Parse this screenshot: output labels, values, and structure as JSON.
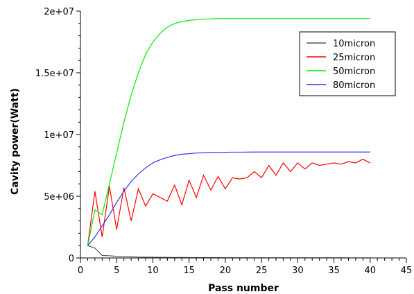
{
  "chart_data": {
    "type": "line",
    "title": "",
    "xlabel": "Pass number",
    "ylabel": "Cavity power(Watt)",
    "xlim": [
      0,
      45
    ],
    "ylim": [
      0,
      20000000
    ],
    "x_ticks": [
      0,
      5,
      10,
      15,
      20,
      25,
      30,
      35,
      40,
      45
    ],
    "x_tick_labels": [
      "0",
      "5",
      "10",
      "15",
      "20",
      "25",
      "30",
      "35",
      "40",
      "45"
    ],
    "y_ticks": [
      0,
      5000000,
      10000000,
      15000000,
      20000000
    ],
    "y_tick_labels": [
      "0",
      "5e+06",
      "1e+07",
      "1.5e+07",
      "2e+07"
    ],
    "grid": false,
    "legend_position": "top-right",
    "series": [
      {
        "name": "10micron",
        "color": "#555555",
        "x": [
          1,
          2,
          3,
          4,
          5,
          6,
          7,
          8,
          9,
          10,
          11,
          12,
          13,
          14,
          15,
          16,
          17,
          18,
          19,
          20,
          21,
          22,
          23,
          24,
          25,
          26,
          27,
          28,
          29,
          30,
          31,
          32,
          33,
          34,
          35,
          36,
          37,
          38,
          39,
          40
        ],
        "y": [
          1000000,
          800000,
          200000,
          180000,
          130000,
          110000,
          90000,
          75000,
          65000,
          55000,
          48000,
          42000,
          37000,
          33000,
          29000,
          26000,
          23000,
          21000,
          19000,
          17000,
          15000,
          14000,
          13000,
          12000,
          11000,
          10000,
          9000,
          8500,
          8000,
          7500,
          7000,
          6500,
          6000,
          5600,
          5300,
          5000,
          4700,
          4500,
          4300,
          4100
        ]
      },
      {
        "name": "25micron",
        "color": "#ff0000",
        "x": [
          1,
          2,
          3,
          4,
          5,
          6,
          7,
          8,
          9,
          10,
          11,
          12,
          13,
          14,
          15,
          16,
          17,
          18,
          19,
          20,
          21,
          22,
          23,
          24,
          25,
          26,
          27,
          28,
          29,
          30,
          31,
          32,
          33,
          34,
          35,
          36,
          37,
          38,
          39,
          40
        ],
        "y": [
          1000000,
          5400000,
          1700000,
          5800000,
          2300000,
          5700000,
          3000000,
          5600000,
          4200000,
          5200000,
          4900000,
          4600000,
          5900000,
          4300000,
          6300000,
          4900000,
          6700000,
          5500000,
          6600000,
          5600000,
          6500000,
          6400000,
          6500000,
          7000000,
          6500000,
          7500000,
          6700000,
          7700000,
          7000000,
          7700000,
          7200000,
          7700000,
          7500000,
          7600000,
          7700000,
          7600000,
          7800000,
          7700000,
          8000000,
          7700000
        ]
      },
      {
        "name": "50micron",
        "color": "#00ee00",
        "x": [
          1,
          2,
          3,
          4,
          5,
          6,
          7,
          8,
          9,
          10,
          11,
          12,
          13,
          14,
          15,
          16,
          17,
          18,
          19,
          20,
          21,
          22,
          23,
          24,
          25,
          26,
          27,
          28,
          29,
          30,
          31,
          32,
          33,
          34,
          35,
          36,
          37,
          38,
          39,
          40
        ],
        "y": [
          1000000,
          3900000,
          3500000,
          6000000,
          8500000,
          11000000,
          13200000,
          15000000,
          16500000,
          17500000,
          18200000,
          18700000,
          19000000,
          19150000,
          19250000,
          19300000,
          19350000,
          19370000,
          19390000,
          19400000,
          19400000,
          19400000,
          19400000,
          19400000,
          19400000,
          19400000,
          19400000,
          19400000,
          19400000,
          19400000,
          19400000,
          19400000,
          19400000,
          19400000,
          19400000,
          19400000,
          19400000,
          19400000,
          19400000,
          19400000
        ]
      },
      {
        "name": "80micron",
        "color": "#3333ff",
        "x": [
          1,
          2,
          3,
          4,
          5,
          6,
          7,
          8,
          9,
          10,
          11,
          12,
          13,
          14,
          15,
          16,
          17,
          18,
          19,
          20,
          21,
          22,
          23,
          24,
          25,
          26,
          27,
          28,
          29,
          30,
          31,
          32,
          33,
          34,
          35,
          36,
          37,
          38,
          39,
          40
        ],
        "y": [
          1000000,
          1700000,
          2600000,
          3500000,
          4500000,
          5400000,
          6200000,
          6800000,
          7300000,
          7700000,
          7950000,
          8150000,
          8300000,
          8400000,
          8450000,
          8500000,
          8520000,
          8540000,
          8550000,
          8560000,
          8570000,
          8570000,
          8575000,
          8580000,
          8580000,
          8580000,
          8580000,
          8580000,
          8580000,
          8580000,
          8580000,
          8580000,
          8580000,
          8580000,
          8580000,
          8580000,
          8580000,
          8580000,
          8580000,
          8580000
        ]
      }
    ]
  }
}
